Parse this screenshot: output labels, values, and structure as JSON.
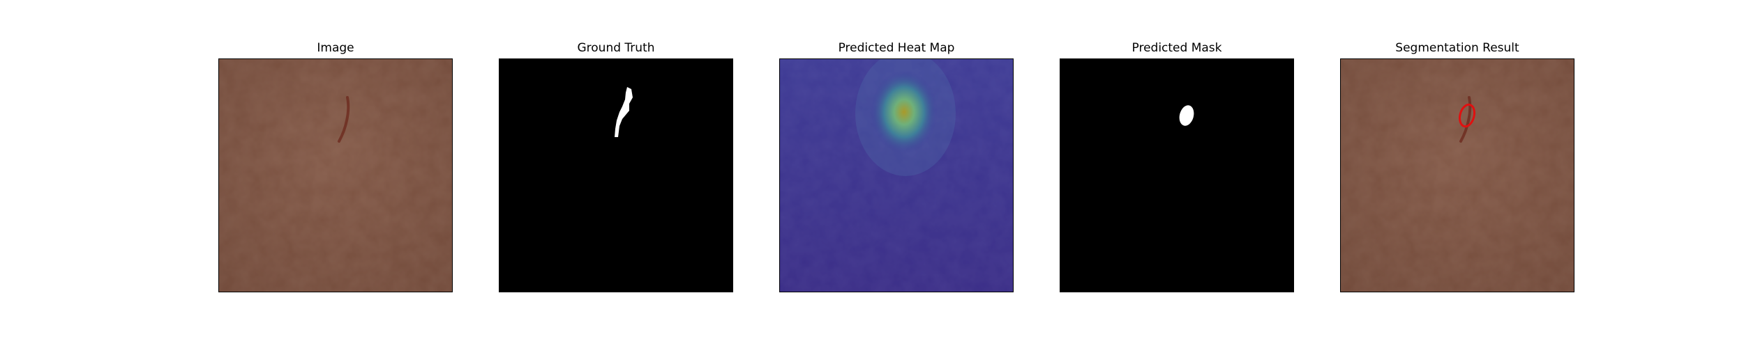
{
  "panels": [
    {
      "title": "Image"
    },
    {
      "title": "Ground Truth"
    },
    {
      "title": "Predicted Heat Map"
    },
    {
      "title": "Predicted Mask"
    },
    {
      "title": "Segmentation Result"
    }
  ],
  "colors": {
    "leather": "#7a5140",
    "mask_bg": "#000000",
    "mask_fg": "#ffffff",
    "heat_base": "#3b2f8c",
    "contour": "#e01010"
  }
}
